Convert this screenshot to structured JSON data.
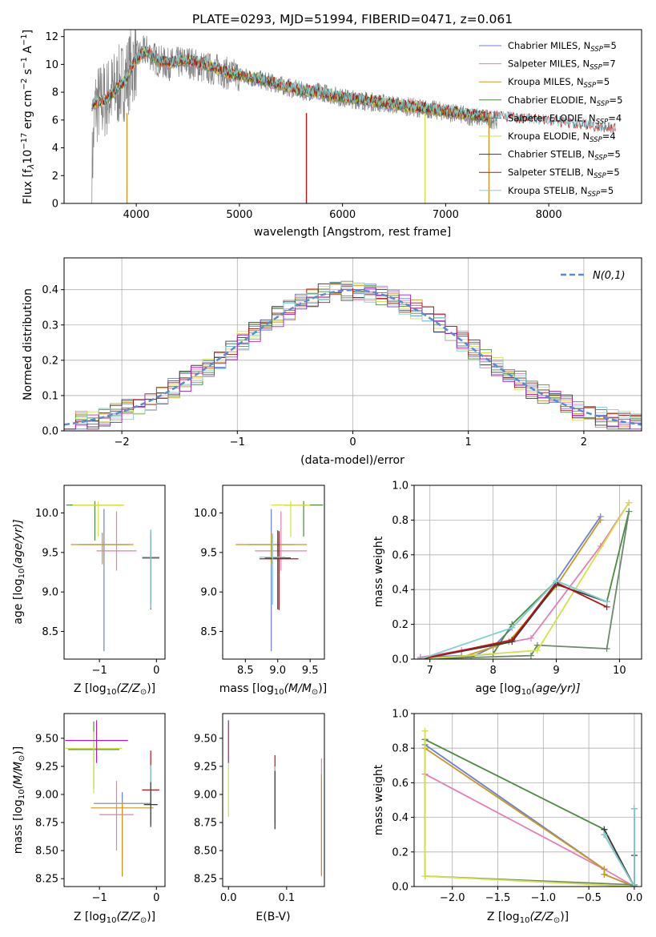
{
  "colors": [
    "#6c7fd8",
    "#e37fb4",
    "#c8991f",
    "#4c8a3f",
    "#6a8a6a",
    "#d4e046",
    "#3a3a3a",
    "#b81414",
    "#7fd0d8"
  ],
  "chart_data": [
    {
      "type": "line",
      "title": "PLATE=0293, MJD=51994, FIBERID=0471, z=0.061",
      "xlabel": "wavelength [Angstrom, rest frame]",
      "ylabel": "Flux [f",
      "xlim": [
        3300,
        8900
      ],
      "ylim": [
        0,
        12.5
      ],
      "xticks": [
        4000,
        5000,
        6000,
        7000,
        8000
      ],
      "yticks": [
        0,
        2,
        4,
        6,
        8,
        10,
        12
      ],
      "legend_placement": "top-right",
      "legend": [
        {
          "name": "Chabrier MILES, N",
          "n": "5"
        },
        {
          "name": "Salpeter MILES, N",
          "n": "7"
        },
        {
          "name": "Kroupa MILES, N",
          "n": "5"
        },
        {
          "name": "Chabrier ELODIE, N",
          "n": "5"
        },
        {
          "name": "Salpeter ELODIE, N",
          "n": "4"
        },
        {
          "name": "Kroupa ELODIE, N",
          "n": "4"
        },
        {
          "name": "Chabrier STELIB, N",
          "n": "5"
        },
        {
          "name": "Salpeter STELIB, N",
          "n": "5"
        },
        {
          "name": "Kroupa STELIB, N",
          "n": "5"
        }
      ],
      "data_curve": {
        "wavelength": [
          3560,
          3600,
          3700,
          3800,
          3900,
          4000,
          4100,
          4200,
          4300,
          4400,
          4500,
          4600,
          4700,
          4800,
          4900,
          5000,
          5200,
          5400,
          5600,
          5800,
          6000,
          6200,
          6400,
          6600,
          6800,
          7000,
          7200,
          7400,
          7500
        ],
        "flux": [
          0.5,
          7.0,
          7.5,
          8.2,
          9.0,
          10.5,
          11.0,
          10.3,
          10.0,
          10.1,
          10.2,
          9.9,
          9.7,
          9.6,
          9.3,
          9.2,
          8.9,
          8.5,
          8.1,
          8.0,
          7.6,
          7.4,
          7.2,
          7.0,
          6.8,
          6.6,
          6.3,
          6.1,
          6.0
        ]
      },
      "model_curve": {
        "wavelength": [
          3560,
          3700,
          3800,
          3900,
          4000,
          4100,
          4200,
          4300,
          4400,
          4500,
          4700,
          4900,
          5000,
          5200,
          5400,
          5600,
          5800,
          6000,
          6200,
          6400,
          6600,
          6800,
          7000,
          7200,
          7400,
          7600,
          7800,
          8000,
          8200,
          8400,
          8600,
          8800
        ],
        "flux": [
          7.0,
          7.3,
          8.0,
          8.8,
          10.3,
          10.8,
          10.2,
          10.0,
          10.1,
          10.2,
          9.8,
          9.2,
          9.1,
          8.8,
          8.4,
          8.0,
          7.8,
          7.5,
          7.3,
          7.1,
          6.9,
          6.7,
          6.5,
          6.3,
          6.1,
          6.0,
          5.9,
          5.8,
          5.6,
          5.4,
          5.2,
          5.0
        ]
      }
    },
    {
      "type": "bar",
      "xlabel": "(data-model)/error",
      "ylabel": "Normed distribution",
      "xlim": [
        -2.5,
        2.5
      ],
      "ylim": [
        0,
        0.49
      ],
      "xticks": [
        -2,
        -1,
        0,
        1,
        2
      ],
      "yticks": [
        0.0,
        0.1,
        0.2,
        0.3,
        0.4
      ],
      "grid": true,
      "legend_placement": "top-right",
      "legend": [
        {
          "name": "(0,1)"
        }
      ],
      "bin_edges_start": -2.5,
      "bin_width": 0.1,
      "histogram_values": [
        0.025,
        0.028,
        0.032,
        0.037,
        0.045,
        0.052,
        0.06,
        0.07,
        0.08,
        0.075,
        0.1,
        0.118,
        0.135,
        0.155,
        0.175,
        0.195,
        0.21,
        0.235,
        0.255,
        0.27,
        0.29,
        0.31,
        0.33,
        0.345,
        0.36,
        0.38,
        0.39,
        0.4,
        0.405,
        0.42,
        0.43,
        0.425,
        0.41,
        0.4,
        0.395,
        0.385,
        0.37,
        0.355,
        0.33,
        0.305,
        0.285,
        0.26,
        0.23,
        0.21,
        0.19,
        0.17,
        0.15,
        0.125,
        0.11,
        0.095,
        0.085,
        0.075,
        0.065,
        0.058,
        0.05,
        0.045,
        0.04,
        0.035,
        0.03,
        0.028,
        0.025,
        0.022,
        0.02,
        0.018,
        0.017,
        0.016,
        0.015,
        0.014,
        0.013,
        0.012,
        0.011,
        0.01,
        0.01,
        0.01,
        0.01,
        0.01,
        0.01,
        0.01,
        0.01,
        0.01,
        0.01,
        0.01,
        0.01,
        0.01,
        0.01,
        0.01,
        0.01,
        0.01,
        0.01,
        0.01,
        0.01,
        0.01,
        0.01,
        0.01,
        0.01,
        0.01,
        0.01,
        0.01,
        0.01,
        0.01
      ]
    },
    {
      "type": "scatter",
      "name": "age_vs_Z",
      "xlabel": "Z [log",
      "ylabel": "age  [log",
      "xlim": [
        -1.62,
        0.15
      ],
      "ylim": [
        8.15,
        10.35
      ],
      "xticks": [
        -1,
        0
      ],
      "yticks": [
        8.5,
        9.0,
        9.5,
        10.0
      ],
      "points": [
        {
          "x": -0.92,
          "y": 9.6,
          "xerr": 0.45,
          "yerr_lo": 1.35,
          "yerr_hi": 0.45,
          "c": 0
        },
        {
          "x": -0.7,
          "y": 9.52,
          "xerr": 0.35,
          "yerr_lo": 0.25,
          "yerr_hi": 0.5,
          "c": 1
        },
        {
          "x": -0.95,
          "y": 9.6,
          "xerr": 0.55,
          "yerr_lo": 0.25,
          "yerr_hi": 0.15,
          "c": 2
        },
        {
          "x": -1.08,
          "y": 10.1,
          "xerr": 0.5,
          "yerr_lo": 0.45,
          "yerr_hi": 0.05,
          "c": 3
        },
        {
          "x": -1.02,
          "y": 10.1,
          "xerr": 0.45,
          "yerr_lo": 0.4,
          "yerr_hi": 0.05,
          "c": 5
        },
        {
          "x": -0.1,
          "y": 9.43,
          "xerr": 0.15,
          "yerr_lo": 0.65,
          "yerr_hi": 0.35,
          "c": 6
        },
        {
          "x": -0.1,
          "y": 9.44,
          "xerr": 0.15,
          "yerr_lo": 0.6,
          "yerr_hi": 0.3,
          "c": 7
        },
        {
          "x": -0.1,
          "y": 9.44,
          "xerr": 0.15,
          "yerr_lo": 0.65,
          "yerr_hi": 0.35,
          "c": 8
        }
      ]
    },
    {
      "type": "scatter",
      "name": "age_vs_mass",
      "xlabel": "mass [log",
      "ylabel": "",
      "xlim": [
        8.15,
        9.72
      ],
      "ylim": [
        8.15,
        10.35
      ],
      "xticks": [
        8.5,
        9.0,
        9.5
      ],
      "yticks": [
        8.5,
        9.0,
        9.5,
        10.0
      ],
      "points": [
        {
          "x": 8.9,
          "y": 9.6,
          "xerr": 0.35,
          "yerr_lo": 1.35,
          "yerr_hi": 0.45,
          "c": 0
        },
        {
          "x": 9.05,
          "y": 9.52,
          "xerr": 0.4,
          "yerr_lo": 0.25,
          "yerr_hi": 0.5,
          "c": 1
        },
        {
          "x": 8.9,
          "y": 9.6,
          "xerr": 0.55,
          "yerr_lo": 0.25,
          "yerr_hi": 0.15,
          "c": 2
        },
        {
          "x": 9.4,
          "y": 10.1,
          "xerr": 0.3,
          "yerr_lo": 0.4,
          "yerr_hi": 0.05,
          "c": 3
        },
        {
          "x": 9.2,
          "y": 10.1,
          "xerr": 0.3,
          "yerr_lo": 0.4,
          "yerr_hi": 0.05,
          "c": 5
        },
        {
          "x": 9.0,
          "y": 9.43,
          "xerr": 0.2,
          "yerr_lo": 0.65,
          "yerr_hi": 0.35,
          "c": 6
        },
        {
          "x": 9.02,
          "y": 9.42,
          "xerr": 0.3,
          "yerr_lo": 0.65,
          "yerr_hi": 0.35,
          "c": 7
        },
        {
          "x": 8.92,
          "y": 9.44,
          "xerr": 0.2,
          "yerr_lo": 0.6,
          "yerr_hi": 0.3,
          "c": 8
        }
      ]
    },
    {
      "type": "line",
      "name": "weight_vs_age",
      "xlabel": "age  [log",
      "ylabel": "mass weight",
      "xlim": [
        6.75,
        10.35
      ],
      "ylim": [
        0,
        1.0
      ],
      "xticks": [
        7,
        8,
        9,
        10
      ],
      "yticks": [
        0.0,
        0.2,
        0.4,
        0.6,
        0.8,
        1.0
      ],
      "grid": true,
      "series": [
        {
          "c": 0,
          "x": [
            6.85,
            7.5,
            7.65,
            8.0,
            8.3,
            9.0,
            9.7
          ],
          "y": [
            0.01,
            0.02,
            0.01,
            0.07,
            0.18,
            0.45,
            0.82
          ]
        },
        {
          "c": 1,
          "x": [
            6.85,
            7.5,
            8.0,
            8.6,
            9.7,
            10.15
          ],
          "y": [
            0.01,
            0.05,
            0.08,
            0.12,
            0.65,
            0.9
          ]
        },
        {
          "c": 2,
          "x": [
            6.85,
            7.5,
            8.0,
            8.25,
            9.0,
            9.7
          ],
          "y": [
            0.0,
            0.01,
            0.07,
            0.1,
            0.42,
            0.8
          ]
        },
        {
          "c": 3,
          "x": [
            6.85,
            8.0,
            8.3,
            9.0,
            9.8,
            10.15
          ],
          "y": [
            0.0,
            0.03,
            0.2,
            0.45,
            0.33,
            0.85
          ]
        },
        {
          "c": 4,
          "x": [
            6.85,
            8.6,
            8.7,
            9.8,
            10.15
          ],
          "y": [
            0.0,
            0.02,
            0.08,
            0.06,
            0.85
          ]
        },
        {
          "c": 5,
          "x": [
            6.85,
            8.7,
            10.15
          ],
          "y": [
            0.0,
            0.05,
            0.9
          ]
        },
        {
          "c": 6,
          "x": [
            6.85,
            8.3,
            9.0,
            9.8
          ],
          "y": [
            0.0,
            0.1,
            0.43,
            0.33
          ]
        },
        {
          "c": 7,
          "x": [
            6.85,
            8.3,
            9.0,
            9.8
          ],
          "y": [
            0.0,
            0.11,
            0.44,
            0.3
          ]
        },
        {
          "c": 8,
          "x": [
            6.85,
            8.3,
            9.0,
            9.8
          ],
          "y": [
            0.0,
            0.18,
            0.45,
            0.33
          ]
        }
      ]
    },
    {
      "type": "scatter",
      "name": "mass_vs_Z",
      "xlabel": "Z [log",
      "ylabel": "mass [log",
      "xlim": [
        -1.62,
        0.15
      ],
      "ylim": [
        8.18,
        9.72
      ],
      "xticks": [
        -1,
        0
      ],
      "yticks": [
        8.25,
        8.5,
        8.75,
        9.0,
        9.25,
        9.5
      ],
      "points": [
        {
          "x": -0.6,
          "y": 8.92,
          "xerr": 0.5,
          "yerr_lo": 0.65,
          "yerr_hi": 0.1,
          "c": 0
        },
        {
          "x": -0.7,
          "y": 8.82,
          "xerr": 0.3,
          "yerr_lo": 0.32,
          "yerr_hi": 0.3,
          "c": 1
        },
        {
          "x": -0.6,
          "y": 8.88,
          "xerr": 0.55,
          "yerr_lo": 0.6,
          "yerr_hi": 0.05,
          "c": 2
        },
        {
          "x": -1.1,
          "y": 9.4,
          "xerr": 0.45,
          "yerr_lo": 0.35,
          "yerr_hi": 0.25,
          "c": 3
        },
        {
          "x": -1.1,
          "y": 9.41,
          "xerr": 0.5,
          "yerr_lo": 0.4,
          "yerr_hi": 0.15,
          "c": 5
        },
        {
          "x": -1.05,
          "y": 9.48,
          "xerr": 0.55,
          "yerr_lo": 0.2,
          "yerr_hi": 0.18,
          "c": 9
        },
        {
          "x": -0.1,
          "y": 9.04,
          "xerr": 0.15,
          "yerr_lo": 0.3,
          "yerr_hi": 0.35,
          "c": 7
        },
        {
          "x": -0.1,
          "y": 8.91,
          "xerr": 0.1,
          "yerr_lo": 0.18,
          "yerr_hi": 0.35,
          "c": 8
        },
        {
          "x": -0.1,
          "y": 8.91,
          "xerr": 0.12,
          "yerr_lo": 0.2,
          "yerr_hi": 0.2,
          "c": 6
        }
      ]
    },
    {
      "type": "scatter",
      "name": "mass_vs_EBV",
      "xlabel": "E(B-V)",
      "ylabel": "",
      "xlim": [
        -0.01,
        0.165
      ],
      "ylim": [
        8.18,
        9.72
      ],
      "xticks": [
        0.0,
        0.1
      ],
      "yticks": [
        8.25,
        8.5,
        8.75,
        9.0,
        9.25,
        9.5
      ],
      "points": [
        {
          "x": 0.0,
          "y": 9.4,
          "yerr_lo": 0.6,
          "yerr_hi": 0.25,
          "c": 5
        },
        {
          "x": 0.0,
          "y": 9.48,
          "yerr_lo": 0.2,
          "yerr_hi": 0.18,
          "c": 9
        },
        {
          "x": 0.08,
          "y": 9.0,
          "yerr_lo": 0.25,
          "yerr_hi": 0.35,
          "c": 7
        },
        {
          "x": 0.08,
          "y": 8.9,
          "yerr_lo": 0.2,
          "yerr_hi": 0.35,
          "c": 8
        },
        {
          "x": 0.08,
          "y": 8.91,
          "yerr_lo": 0.22,
          "yerr_hi": 0.3,
          "c": 6
        },
        {
          "x": 0.16,
          "y": 8.82,
          "yerr_lo": 0.55,
          "yerr_hi": 0.5,
          "c": 1
        },
        {
          "x": 0.16,
          "y": 8.88,
          "yerr_lo": 0.6,
          "yerr_hi": 0.3,
          "c": 2
        }
      ]
    },
    {
      "type": "line",
      "name": "weight_vs_Z",
      "xlabel": "Z [log",
      "ylabel": "mass weight",
      "xlim": [
        -2.42,
        0.08
      ],
      "ylim": [
        0,
        1.0
      ],
      "xticks": [
        -2.0,
        -1.5,
        -1.0,
        -0.5,
        0.0
      ],
      "yticks": [
        0.0,
        0.2,
        0.4,
        0.6,
        0.8,
        1.0
      ],
      "grid": true,
      "series": [
        {
          "c": 0,
          "x": [
            -2.3,
            -0.33,
            -0.33,
            0.0,
            0.0
          ],
          "y": [
            0.82,
            0.1,
            0.07,
            0.0,
            0.45
          ]
        },
        {
          "c": 1,
          "x": [
            -2.3,
            -0.33,
            0.0
          ],
          "y": [
            0.65,
            0.1,
            0.0
          ]
        },
        {
          "c": 2,
          "x": [
            -2.3,
            -0.33,
            -0.33,
            0.0
          ],
          "y": [
            0.8,
            0.1,
            0.07,
            0.0
          ]
        },
        {
          "c": 3,
          "x": [
            -2.3,
            -0.33,
            0.0,
            0.0
          ],
          "y": [
            0.85,
            0.33,
            0.0,
            0.45
          ]
        },
        {
          "c": 4,
          "x": [
            -2.3,
            -2.3,
            0.0
          ],
          "y": [
            0.85,
            0.06,
            0.01
          ]
        },
        {
          "c": 5,
          "x": [
            -2.3,
            -2.3,
            0.0
          ],
          "y": [
            0.9,
            0.06,
            0.0
          ]
        },
        {
          "c": 6,
          "x": [
            -0.33,
            0.0,
            0.0
          ],
          "y": [
            0.33,
            0.0,
            0.18
          ]
        },
        {
          "c": 7,
          "x": [
            -0.33,
            0.0
          ],
          "y": [
            0.3,
            0.0
          ]
        },
        {
          "c": 8,
          "x": [
            -0.33,
            0.0,
            0.0
          ],
          "y": [
            0.3,
            0.0,
            0.45
          ]
        }
      ]
    }
  ],
  "ui": {
    "extra_color": "#a020c0",
    "gauss_color": "#5a8ad0",
    "data_color": "#808080",
    "ylabel0_unit": "10",
    "ylabel0_exp": "−17",
    "ylabel0_rest": " erg cm",
    "ylabel0_e2": "−2",
    "ylabel0_s": " s",
    "ylabel0_e3": "−1",
    "ylabel0_a": " A",
    "ylabel0_e4": "−1",
    "ylabel0_end": "]",
    "legend_sub": "SSP",
    "legend_eq": "=",
    "gauss_label": "N(0,1)",
    "z_sub": "10",
    "z_unit": "(Z/Z",
    "z_sun": "⊙",
    "z_end": ")]",
    "age_unit": "(age/yr)]",
    "mass_unit": "(M/M",
    "mass_end": ")]"
  }
}
